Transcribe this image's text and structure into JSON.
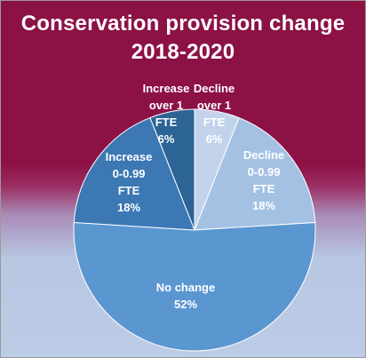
{
  "chart_data": {
    "type": "pie",
    "title_lines": [
      "Conservation provision change",
      "2018-2020"
    ],
    "slices": [
      {
        "label_lines": [
          "Decline",
          "over 1",
          "FTE"
        ],
        "value": 6,
        "value_label": "6%",
        "color": "#c3d3ec"
      },
      {
        "label_lines": [
          "Decline",
          "0-0.99",
          "FTE"
        ],
        "value": 18,
        "value_label": "18%",
        "color": "#a4c1e4"
      },
      {
        "label_lines": [
          "No change"
        ],
        "value": 52,
        "value_label": "52%",
        "color": "#5a96d0"
      },
      {
        "label_lines": [
          "Increase",
          "0-0.99",
          "FTE"
        ],
        "value": 18,
        "value_label": "18%",
        "color": "#3c78b4"
      },
      {
        "label_lines": [
          "Increase",
          "over 1",
          "FTE"
        ],
        "value": 6,
        "value_label": "6%",
        "color": "#2c6496"
      }
    ]
  }
}
